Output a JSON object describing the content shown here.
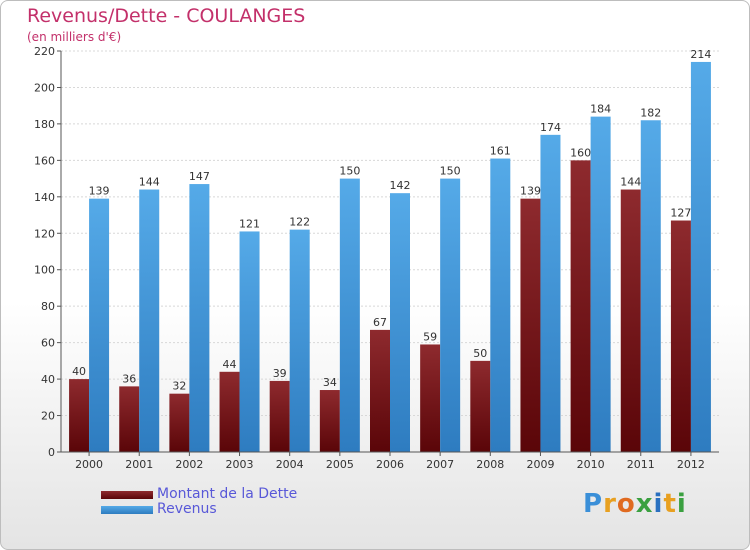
{
  "header": {
    "title": "Revenus/Dette - COULANGES",
    "subtitle": "(en milliers d'€)"
  },
  "chart_data": {
    "type": "bar",
    "title": "Revenus/Dette - COULANGES",
    "ylabel": "(en milliers d'€)",
    "categories": [
      "2000",
      "2001",
      "2002",
      "2003",
      "2004",
      "2005",
      "2006",
      "2007",
      "2008",
      "2009",
      "2010",
      "2011",
      "2012"
    ],
    "series": [
      {
        "name": "Montant de la Dette",
        "color": "#7a1a1e",
        "values": [
          40,
          36,
          32,
          44,
          39,
          34,
          67,
          59,
          50,
          139,
          160,
          144,
          127
        ]
      },
      {
        "name": "Revenus",
        "color": "#4a9fe0",
        "values": [
          139,
          144,
          147,
          121,
          122,
          150,
          142,
          150,
          161,
          174,
          184,
          182,
          214
        ]
      }
    ],
    "ylim": [
      0,
      220
    ],
    "yticks": [
      0,
      20,
      40,
      60,
      80,
      100,
      120,
      140,
      160,
      180,
      200,
      220
    ],
    "grid": true,
    "legend_position": "bottom-left"
  },
  "legend": {
    "items": [
      {
        "label": "Montant de la Dette",
        "color": "#6b0f12"
      },
      {
        "label": "Revenus",
        "color": "#4a9fe0"
      }
    ]
  },
  "logo": {
    "letters": [
      "P",
      "r",
      "o",
      "x",
      "i",
      "t",
      "i"
    ],
    "colors": [
      "#3a8fd8",
      "#e8a020",
      "#e06a20",
      "#3aa040",
      "#2a70c0",
      "#e8a020",
      "#3aa040"
    ]
  }
}
